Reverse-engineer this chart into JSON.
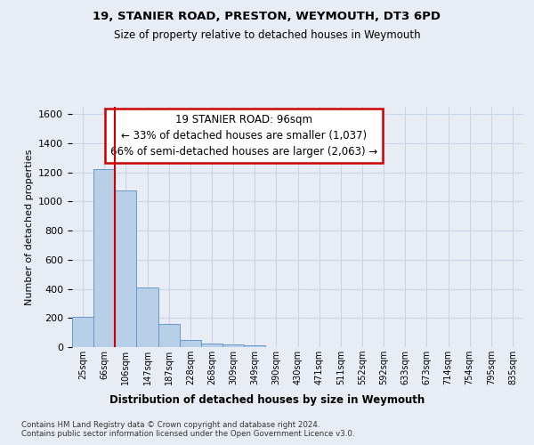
{
  "title1": "19, STANIER ROAD, PRESTON, WEYMOUTH, DT3 6PD",
  "title2": "Size of property relative to detached houses in Weymouth",
  "xlabel": "Distribution of detached houses by size in Weymouth",
  "ylabel": "Number of detached properties",
  "footer1": "Contains HM Land Registry data © Crown copyright and database right 2024.",
  "footer2": "Contains public sector information licensed under the Open Government Licence v3.0.",
  "bin_labels": [
    "25sqm",
    "66sqm",
    "106sqm",
    "147sqm",
    "187sqm",
    "228sqm",
    "268sqm",
    "309sqm",
    "349sqm",
    "390sqm",
    "430sqm",
    "471sqm",
    "511sqm",
    "552sqm",
    "592sqm",
    "633sqm",
    "673sqm",
    "714sqm",
    "754sqm",
    "795sqm",
    "835sqm"
  ],
  "bar_values": [
    205,
    1225,
    1075,
    410,
    160,
    50,
    27,
    17,
    14,
    0,
    0,
    0,
    0,
    0,
    0,
    0,
    0,
    0,
    0,
    0,
    0
  ],
  "bar_color": "#b8cfe8",
  "bar_edge_color": "#6699cc",
  "vline_pos": 1.5,
  "vline_color": "#cc0000",
  "annotation_line1": "19 STANIER ROAD: 96sqm",
  "annotation_line2": "← 33% of detached houses are smaller (1,037)",
  "annotation_line3": "66% of semi-detached houses are larger (2,063) →",
  "annotation_box_color": "#ffffff",
  "annotation_box_edge_color": "#cc0000",
  "ylim": [
    0,
    1650
  ],
  "yticks": [
    0,
    200,
    400,
    600,
    800,
    1000,
    1200,
    1400,
    1600
  ],
  "grid_color": "#c8d4e8",
  "bg_color": "#e8edf5",
  "plot_bg_color": "#e8edf5"
}
